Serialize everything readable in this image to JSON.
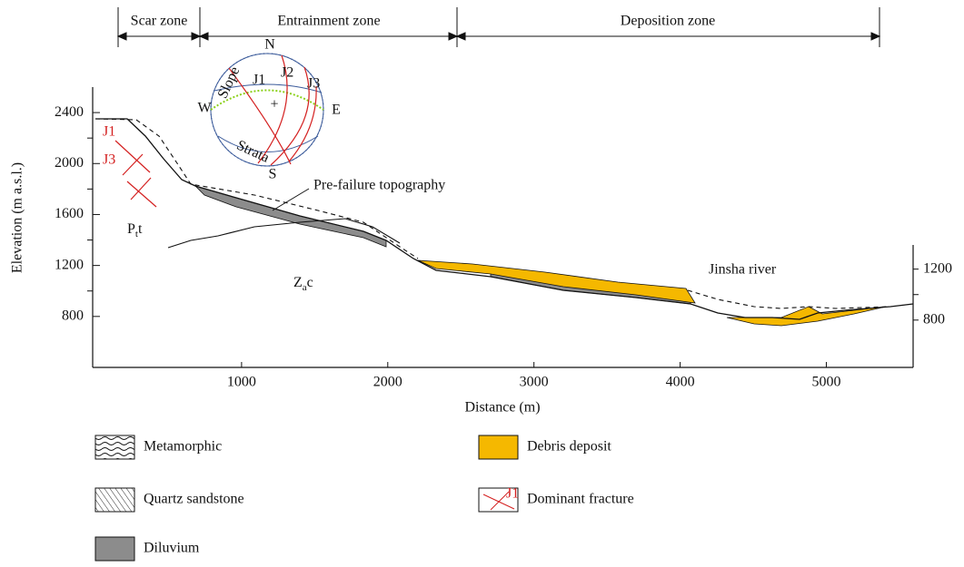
{
  "zones": [
    "Scar zone",
    "Entrainment zone",
    "Deposition zone"
  ],
  "axes": {
    "x": {
      "label": "Distance (m)",
      "lim": [
        0,
        5600
      ],
      "ticks": [
        1000,
        2000,
        3000,
        4000,
        5000
      ]
    },
    "y": {
      "label": "Elevation (m a.s.l.)",
      "lim": [
        400,
        2600
      ],
      "ticks": [
        800,
        1200,
        1600,
        2000,
        2400
      ]
    },
    "y2": {
      "ticks": [
        800,
        1200
      ]
    }
  },
  "annotations": {
    "pre_failure": "Pre-failure topography",
    "river": "Jinsha river",
    "ptt": {
      "main": "P",
      "sub": "t",
      "rest": "t"
    },
    "zac": {
      "main": "Z",
      "sub": "a",
      "rest": "c"
    },
    "fractures": [
      "J1",
      "J3"
    ]
  },
  "stereonet": {
    "directions": [
      "N",
      "S",
      "W",
      "E"
    ],
    "joints": [
      "J1",
      "J2",
      "J3"
    ],
    "slope": "Slope",
    "strata": "Strata",
    "center": "+"
  },
  "legend": [
    {
      "label": "Metamorphic"
    },
    {
      "label": "Quartz sandstone"
    },
    {
      "label": "Diluvium"
    },
    {
      "label": "Debris deposit"
    },
    {
      "label": "Dominant fracture",
      "icon_text": "J1"
    }
  ]
}
